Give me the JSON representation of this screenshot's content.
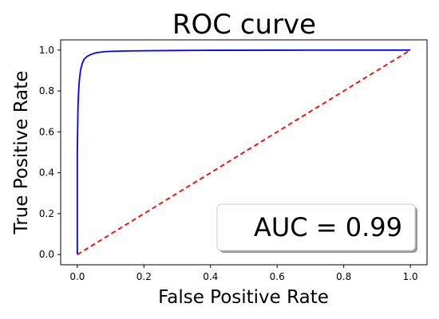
{
  "chart_data": {
    "type": "line",
    "title": "ROC curve",
    "xlabel": "False Positive Rate",
    "ylabel": "True Positive Rate",
    "xlim": [
      -0.05,
      1.05
    ],
    "ylim": [
      -0.05,
      1.05
    ],
    "x_ticks": [
      "0.0",
      "0.2",
      "0.4",
      "0.6",
      "0.8",
      "1.0"
    ],
    "y_ticks": [
      "0.0",
      "0.2",
      "0.4",
      "0.6",
      "0.8",
      "1.0"
    ],
    "grid": false,
    "legend_text": "AUC = 0.99",
    "legend_position": "bottom-right",
    "series": [
      {
        "color": "#0000ff",
        "style": "solid",
        "x": [
          0.0,
          0.0,
          0.002,
          0.004,
          0.006,
          0.008,
          0.01,
          0.015,
          0.02,
          0.03,
          0.04,
          0.05,
          0.06,
          0.08,
          0.1,
          0.15,
          0.2,
          0.3,
          0.4,
          0.6,
          0.8,
          1.0
        ],
        "y": [
          0.0,
          0.5,
          0.72,
          0.8,
          0.85,
          0.88,
          0.905,
          0.935,
          0.955,
          0.97,
          0.978,
          0.984,
          0.988,
          0.992,
          0.994,
          0.996,
          0.997,
          0.998,
          0.999,
          0.9995,
          1.0,
          1.0
        ]
      },
      {
        "color": "#ff0000",
        "style": "dashed",
        "x": [
          0.0,
          1.0
        ],
        "y": [
          0.0,
          1.0
        ]
      }
    ]
  }
}
